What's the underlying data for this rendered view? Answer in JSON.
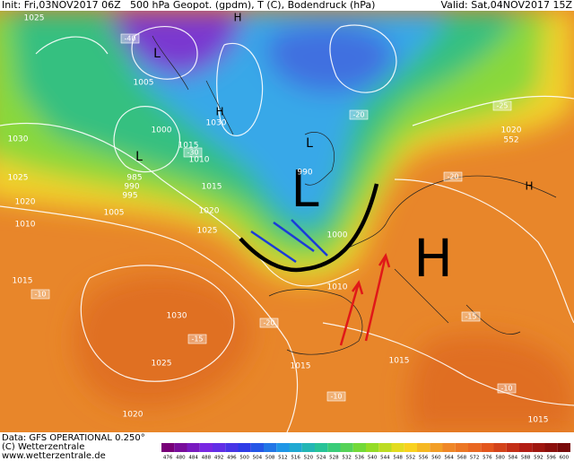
{
  "header": {
    "init": "Init: Fri,03NOV2017 06Z",
    "title": "500 hPa Geopot. (gpdm), T (C), Bodendruck (hPa)",
    "valid": "Valid: Sat,04NOV2017 15Z"
  },
  "map_labels": [
    "L",
    "H",
    "L",
    "L",
    "L",
    "H",
    "H",
    "H",
    "1025",
    "1030",
    "1025",
    "1020",
    "1010",
    "1015",
    "1030",
    "1025",
    "1020",
    "1015",
    "1010",
    "1000",
    "990",
    "1020",
    "552",
    "1015",
    "1015",
    "1005",
    "1000",
    "985",
    "990",
    "995",
    "1005",
    "1015",
    "1020",
    "1025",
    "1010",
    "1030",
    "1015"
  ],
  "temperature_labels": [
    "-40",
    "-30",
    "-10",
    "-15",
    "-15",
    "-20",
    "-10",
    "-10",
    "-20",
    "-20",
    "-25"
  ],
  "footer": {
    "data": "Data: GFS OPERATIONAL 0.250°",
    "copyright": "(C) Wetterzentrale",
    "url": "www.wetterzentrale.de"
  },
  "color_scale": [
    476,
    480,
    484,
    488,
    492,
    496,
    500,
    504,
    508,
    512,
    516,
    520,
    524,
    528,
    532,
    536,
    540,
    544,
    548,
    552,
    556,
    560,
    564,
    568,
    572,
    576,
    580,
    584,
    588,
    592,
    596,
    600
  ]
}
